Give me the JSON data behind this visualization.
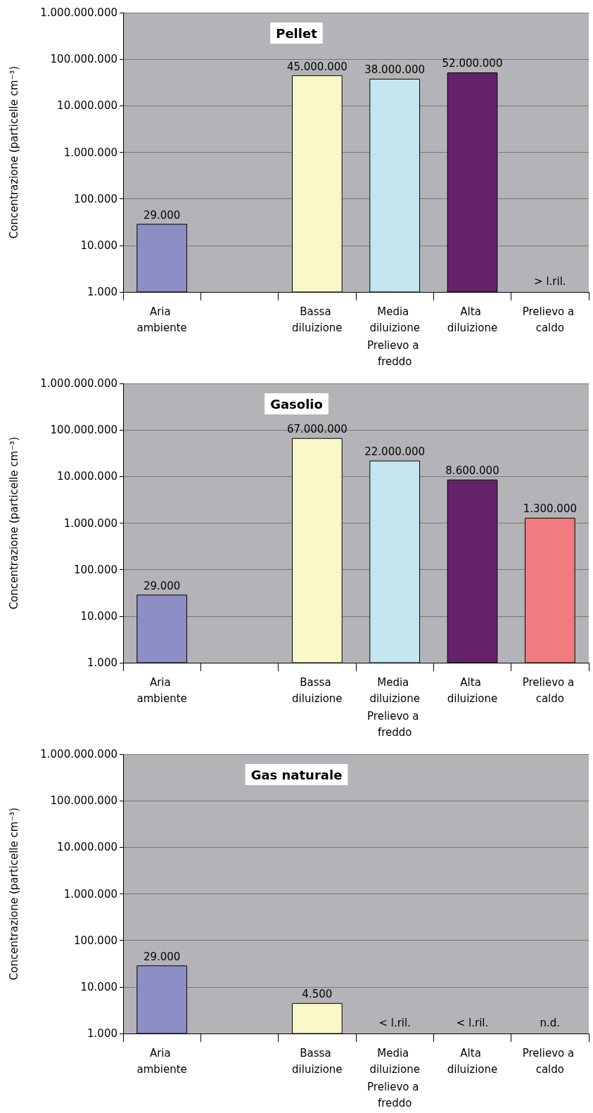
{
  "chart_data": [
    {
      "type": "bar",
      "title": "Pellet",
      "ylabel": "Concentrazione (particelle cm⁻³)",
      "categories": [
        "Aria ambiente",
        null,
        "Bassa diluizione",
        "Media diluizione",
        "Alta diluizione",
        "Prelievo a caldo"
      ],
      "values": [
        29000,
        null,
        45000000,
        38000000,
        52000000,
        null
      ],
      "value_labels": [
        "29.000",
        null,
        "45.000.000",
        "38.000.000",
        "52.000.000",
        "> l.ril."
      ],
      "colors": [
        "#8c8ec4",
        "#8c8ec4",
        "#f8f8c8",
        "#c4e6f0",
        "#64226a",
        "#f07c80"
      ],
      "log": true,
      "ylim": [
        1000,
        1000000000
      ],
      "yticks": [
        {
          "value": 1000,
          "label": "1.000"
        },
        {
          "value": 10000,
          "label": "10.000"
        },
        {
          "value": 100000,
          "label": "100.000"
        },
        {
          "value": 1000000,
          "label": "1.000.000"
        },
        {
          "value": 10000000,
          "label": "10.000.000"
        },
        {
          "value": 100000000,
          "label": "100.000.000"
        },
        {
          "value": 1000000000,
          "label": "1.000.000.000"
        }
      ],
      "grid": "y",
      "annotations": [
        "Prelievo a freddo"
      ]
    },
    {
      "type": "bar",
      "title": "Gasolio",
      "ylabel": "Concentrazione (particelle cm⁻³)",
      "categories": [
        "Aria ambiente",
        null,
        "Bassa diluizione",
        "Media diluizione",
        "Alta diluizione",
        "Prelievo a caldo"
      ],
      "values": [
        29000,
        null,
        67000000,
        22000000,
        8600000,
        1300000
      ],
      "value_labels": [
        "29.000",
        null,
        "67.000.000",
        "22.000.000",
        "8.600.000",
        "1.300.000"
      ],
      "colors": [
        "#8c8ec4",
        "#8c8ec4",
        "#f8f8c8",
        "#c4e6f0",
        "#64226a",
        "#f07c80"
      ],
      "log": true,
      "ylim": [
        1000,
        1000000000
      ],
      "yticks": [
        {
          "value": 1000,
          "label": "1.000"
        },
        {
          "value": 10000,
          "label": "10.000"
        },
        {
          "value": 100000,
          "label": "100.000"
        },
        {
          "value": 1000000,
          "label": "1.000.000"
        },
        {
          "value": 10000000,
          "label": "10.000.000"
        },
        {
          "value": 100000000,
          "label": "100.000.000"
        },
        {
          "value": 1000000000,
          "label": "1.000.000.000"
        }
      ],
      "grid": "y",
      "annotations": [
        "Prelievo a freddo"
      ]
    },
    {
      "type": "bar",
      "title": "Gas naturale",
      "ylabel": "Concentrazione (particelle cm⁻³)",
      "categories": [
        "Aria ambiente",
        null,
        "Bassa diluizione",
        "Media diluizione",
        "Alta diluizione",
        "Prelievo a caldo"
      ],
      "values": [
        29000,
        null,
        4500,
        null,
        null,
        null
      ],
      "value_labels": [
        "29.000",
        null,
        "4.500",
        "< l.ril.",
        "< l.ril.",
        "n.d."
      ],
      "colors": [
        "#8c8ec4",
        "#8c8ec4",
        "#f8f8c8",
        "#c4e6f0",
        "#64226a",
        "#f07c80"
      ],
      "log": true,
      "ylim": [
        1000,
        1000000000
      ],
      "yticks": [
        {
          "value": 1000,
          "label": "1.000"
        },
        {
          "value": 10000,
          "label": "10.000"
        },
        {
          "value": 100000,
          "label": "100.000"
        },
        {
          "value": 1000000,
          "label": "1.000.000"
        },
        {
          "value": 10000000,
          "label": "10.000.000"
        },
        {
          "value": 100000000,
          "label": "100.000.000"
        },
        {
          "value": 1000000000,
          "label": "1.000.000.000"
        }
      ],
      "grid": "y",
      "annotations": [
        "Prelievo a freddo"
      ]
    }
  ]
}
